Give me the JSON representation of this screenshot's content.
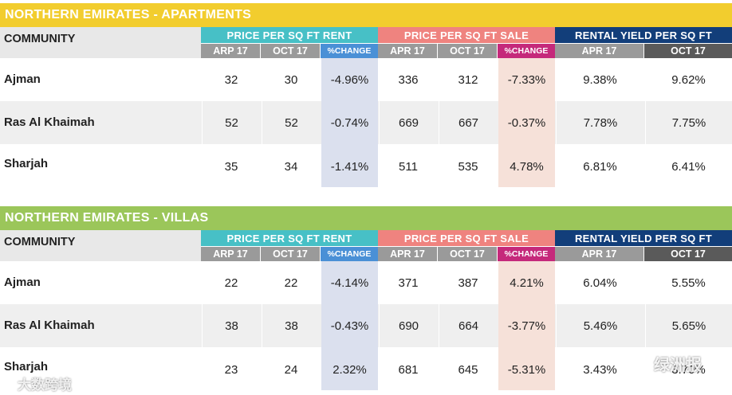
{
  "colors": {
    "apt_banner": "#f2cd2e",
    "villa_banner": "#9bc65a",
    "rent": "#47c0c6",
    "sale": "#ef837f",
    "yield": "#123e7a",
    "sub_gray": "#9a9a9a",
    "sub_dark": "#5a5a5a",
    "pct_blue": "#4a90d6",
    "pct_magenta": "#c5297b",
    "rent_change_fill": "#dbe0ee",
    "sale_change_fill": "#f6e1d9",
    "row_band": "#efefef"
  },
  "headers": {
    "community": "COMMUNITY",
    "rent": "PRICE PER SQ FT RENT",
    "sale": "PRICE PER SQ FT SALE",
    "yield": "RENTAL YIELD PER SQ FT",
    "apr": "APR 17",
    "arp": "ARP 17",
    "oct": "OCT 17",
    "change": "%CHANGE"
  },
  "apartments": {
    "title": "NORTHERN EMIRATES - APARTMENTS",
    "rows": [
      {
        "name": "Ajman",
        "rent_apr": "32",
        "rent_oct": "30",
        "rent_change": "-4.96%",
        "sale_apr": "336",
        "sale_oct": "312",
        "sale_change": "-7.33%",
        "yield_apr": "9.38%",
        "yield_oct": "9.62%"
      },
      {
        "name": "Ras Al Khaimah",
        "rent_apr": "52",
        "rent_oct": "52",
        "rent_change": "-0.74%",
        "sale_apr": "669",
        "sale_oct": "667",
        "sale_change": "-0.37%",
        "yield_apr": "7.78%",
        "yield_oct": "7.75%"
      },
      {
        "name": "Sharjah",
        "rent_apr": "35",
        "rent_oct": "34",
        "rent_change": "-1.41%",
        "sale_apr": "511",
        "sale_oct": "535",
        "sale_change": "4.78%",
        "yield_apr": "6.81%",
        "yield_oct": "6.41%"
      }
    ]
  },
  "villas": {
    "title": "NORTHERN EMIRATES - VILLAS",
    "rows": [
      {
        "name": "Ajman",
        "rent_apr": "22",
        "rent_oct": "22",
        "rent_change": "-4.14%",
        "sale_apr": "371",
        "sale_oct": "387",
        "sale_change": "4.21%",
        "yield_apr": "6.04%",
        "yield_oct": "5.55%"
      },
      {
        "name": "Ras Al Khaimah",
        "rent_apr": "38",
        "rent_oct": "38",
        "rent_change": "-0.43%",
        "sale_apr": "690",
        "sale_oct": "664",
        "sale_change": "-3.77%",
        "yield_apr": "5.46%",
        "yield_oct": "5.65%"
      },
      {
        "name": "Sharjah",
        "rent_apr": "23",
        "rent_oct": "24",
        "rent_change": "2.32%",
        "sale_apr": "681",
        "sale_oct": "645",
        "sale_change": "-5.31%",
        "yield_apr": "3.43%",
        "yield_oct": "3.70%"
      }
    ]
  },
  "watermarks": {
    "left": "大数跨境",
    "right": "绿洲报"
  }
}
